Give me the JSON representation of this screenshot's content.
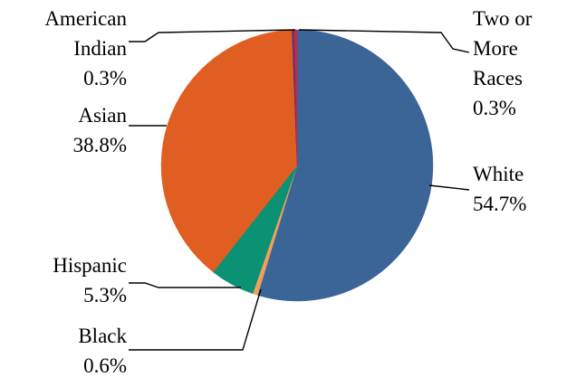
{
  "chart_data": {
    "type": "pie",
    "title": "",
    "slices": [
      {
        "label": [
          "White"
        ],
        "value": 54.7,
        "value_label": "54.7%",
        "color": "#3B6497"
      },
      {
        "label": [
          "Black"
        ],
        "value": 0.6,
        "value_label": "0.6%",
        "color": "#F0A05A"
      },
      {
        "label": [
          "Hispanic"
        ],
        "value": 5.3,
        "value_label": "5.3%",
        "color": "#0B9173"
      },
      {
        "label": [
          "Asian"
        ],
        "value": 38.8,
        "value_label": "38.8%",
        "color": "#E05E21"
      },
      {
        "label": [
          "American",
          "Indian"
        ],
        "value": 0.3,
        "value_label": "0.3%",
        "color": "#6A2F6E"
      },
      {
        "label": [
          "Two or",
          "More",
          "Races"
        ],
        "value": 0.3,
        "value_label": "0.3%",
        "color": "#C02A4E"
      }
    ]
  }
}
